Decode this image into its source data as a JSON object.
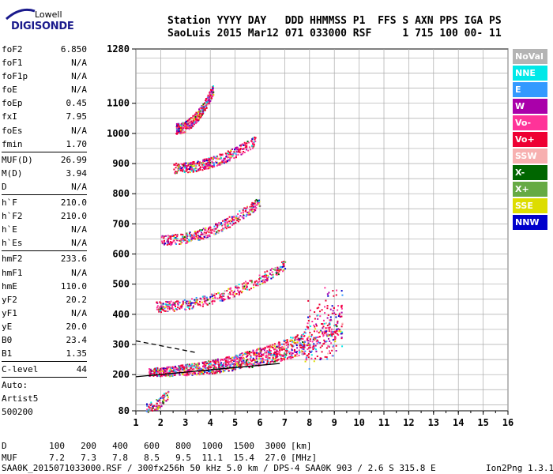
{
  "logo": {
    "line1": "Lowell",
    "line2": "DIGISONDE"
  },
  "header": {
    "line1": "Station YYYY DAY   DDD HHMMSS P1  FFS S AXN PPS IGA PS",
    "line2": "SaoLuis 2015 Mar12 071 033000 RSF     1 715 100 00- 11"
  },
  "params_a": [
    {
      "k": "foF2",
      "v": "6.850"
    },
    {
      "k": "foF1",
      "v": "N/A"
    },
    {
      "k": "foF1p",
      "v": "N/A"
    },
    {
      "k": "foE",
      "v": "N/A"
    },
    {
      "k": "foEp",
      "v": "0.45"
    },
    {
      "k": "fxI",
      "v": "7.95"
    },
    {
      "k": "foEs",
      "v": "N/A"
    },
    {
      "k": "fmin",
      "v": "1.70"
    }
  ],
  "params_b": [
    {
      "k": "MUF(D)",
      "v": "26.99"
    },
    {
      "k": "M(D)",
      "v": "3.94"
    },
    {
      "k": "D",
      "v": "N/A"
    }
  ],
  "params_c": [
    {
      "k": "h`F",
      "v": "210.0"
    },
    {
      "k": "h`F2",
      "v": "210.0"
    },
    {
      "k": "h`E",
      "v": "N/A"
    },
    {
      "k": "h`Es",
      "v": "N/A"
    }
  ],
  "params_d": [
    {
      "k": "hmF2",
      "v": "233.6"
    },
    {
      "k": "hmF1",
      "v": "N/A"
    },
    {
      "k": "hmE",
      "v": "110.0"
    },
    {
      "k": "yF2",
      "v": "20.2"
    },
    {
      "k": "yF1",
      "v": "N/A"
    },
    {
      "k": "yE",
      "v": "20.0"
    },
    {
      "k": "B0",
      "v": "23.4"
    },
    {
      "k": "B1",
      "v": "1.35"
    }
  ],
  "params_e": [
    {
      "k": "C-level",
      "v": "44"
    }
  ],
  "auto": [
    "Auto:",
    "Artist5",
    "500200"
  ],
  "legend": [
    {
      "label": "NoVal",
      "color": "#b4b4b4"
    },
    {
      "label": "NNE",
      "color": "#00e8e8"
    },
    {
      "label": "E",
      "color": "#3399ff"
    },
    {
      "label": "W",
      "color": "#aa00aa"
    },
    {
      "label": "Vo-",
      "color": "#ff3399"
    },
    {
      "label": "Vo+",
      "color": "#ee0033"
    },
    {
      "label": "SSW",
      "color": "#f7b0b0"
    },
    {
      "label": "X-",
      "color": "#006600"
    },
    {
      "label": "X+",
      "color": "#66aa44"
    },
    {
      "label": "SSE",
      "color": "#dddd00"
    },
    {
      "label": "NNW",
      "color": "#0000cc"
    }
  ],
  "table": {
    "d_label": "D",
    "d_values": [
      "100",
      "200",
      "400",
      "600",
      "800",
      "1000",
      "1500",
      "3000"
    ],
    "d_unit": "[km]",
    "muf_label": "MUF",
    "muf_values": [
      "7.2",
      "7.3",
      "7.8",
      "8.5",
      "9.5",
      "11.1",
      "15.4",
      "27.0"
    ],
    "muf_unit": "[MHz]"
  },
  "footer": {
    "left": "SAA0K_2015071033000.RSF / 300fx256h 50 kHz 5.0 km / DPS-4 SAA0K 903 / 2.6 S 315.8 E",
    "right": "Ion2Png 1.3.17"
  },
  "chart_data": {
    "type": "scatter",
    "title": "",
    "xlabel": "",
    "ylabel": "",
    "xlim": [
      1,
      16
    ],
    "ylim": [
      80,
      1280
    ],
    "x_ticks": [
      "1",
      "2",
      "3",
      "4",
      "5",
      "6",
      "7",
      "8",
      "9",
      "10",
      "11",
      "12",
      "13",
      "14",
      "15",
      "16"
    ],
    "y_ticks": [
      {
        "value": 80,
        "label": "80"
      },
      {
        "value": 200,
        "label": "200"
      },
      {
        "value": 300,
        "label": "300"
      },
      {
        "value": 400,
        "label": "400"
      },
      {
        "value": 500,
        "label": "500"
      },
      {
        "value": 600,
        "label": "600"
      },
      {
        "value": 700,
        "label": "700"
      },
      {
        "value": 800,
        "label": "800"
      },
      {
        "value": 900,
        "label": "900"
      },
      {
        "value": 1000,
        "label": "1000"
      },
      {
        "value": 1100,
        "label": "1100"
      },
      {
        "value": 1280,
        "label": "1280"
      }
    ],
    "grid": true,
    "echo_traces": [
      {
        "hop": 1,
        "x_start": 1.5,
        "x_end": 9.3,
        "h_start": 205,
        "h_end": 340,
        "h_top": 450
      },
      {
        "hop": 2,
        "x_start": 1.8,
        "x_end": 7.0,
        "h_start": 420,
        "h_end": 560
      },
      {
        "hop": 3,
        "x_start": 2.0,
        "x_end": 6.0,
        "h_start": 640,
        "h_end": 770
      },
      {
        "hop": 4,
        "x_start": 2.5,
        "x_end": 5.8,
        "h_start": 880,
        "h_end": 970
      },
      {
        "hop": 5,
        "x_start": 2.6,
        "x_end": 4.1,
        "h_start": 1010,
        "h_end": 1140
      },
      {
        "hop": 0,
        "x_start": 1.4,
        "x_end": 2.3,
        "h_start": 85,
        "h_end": 135
      }
    ],
    "profile_lines": [
      {
        "style": "solid",
        "points": [
          [
            1.0,
            193
          ],
          [
            6.8,
            237
          ]
        ]
      },
      {
        "style": "dashed",
        "points": [
          [
            1.0,
            312
          ],
          [
            3.5,
            272
          ]
        ]
      }
    ]
  }
}
